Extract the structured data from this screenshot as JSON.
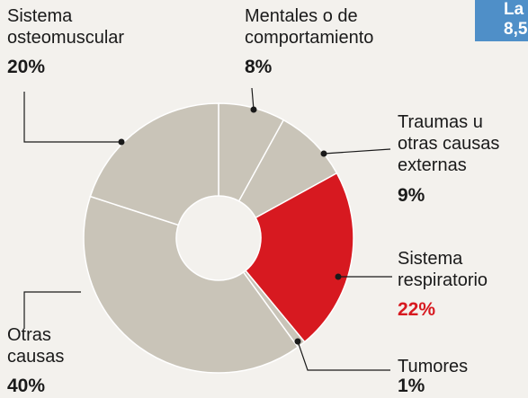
{
  "chart_data": {
    "type": "pie",
    "categories": [
      "Mentales o de\ncomportamiento",
      "Traumas u\notras causas\nexternas",
      "Sistema\nrespiratorio",
      "Tumores",
      "Otras\ncausas",
      "Sistema\nosteomuscular"
    ],
    "values": [
      8,
      9,
      22,
      1,
      40,
      20
    ],
    "value_labels": [
      "8%",
      "9%",
      "22%",
      "1%",
      "40%",
      "20%"
    ],
    "colors": [
      "#c9c4b8",
      "#c9c4b8",
      "#d71920",
      "#c9c4b8",
      "#c9c4b8",
      "#c9c4b8"
    ]
  },
  "overlay_text": [
    "La",
    "8,5"
  ]
}
